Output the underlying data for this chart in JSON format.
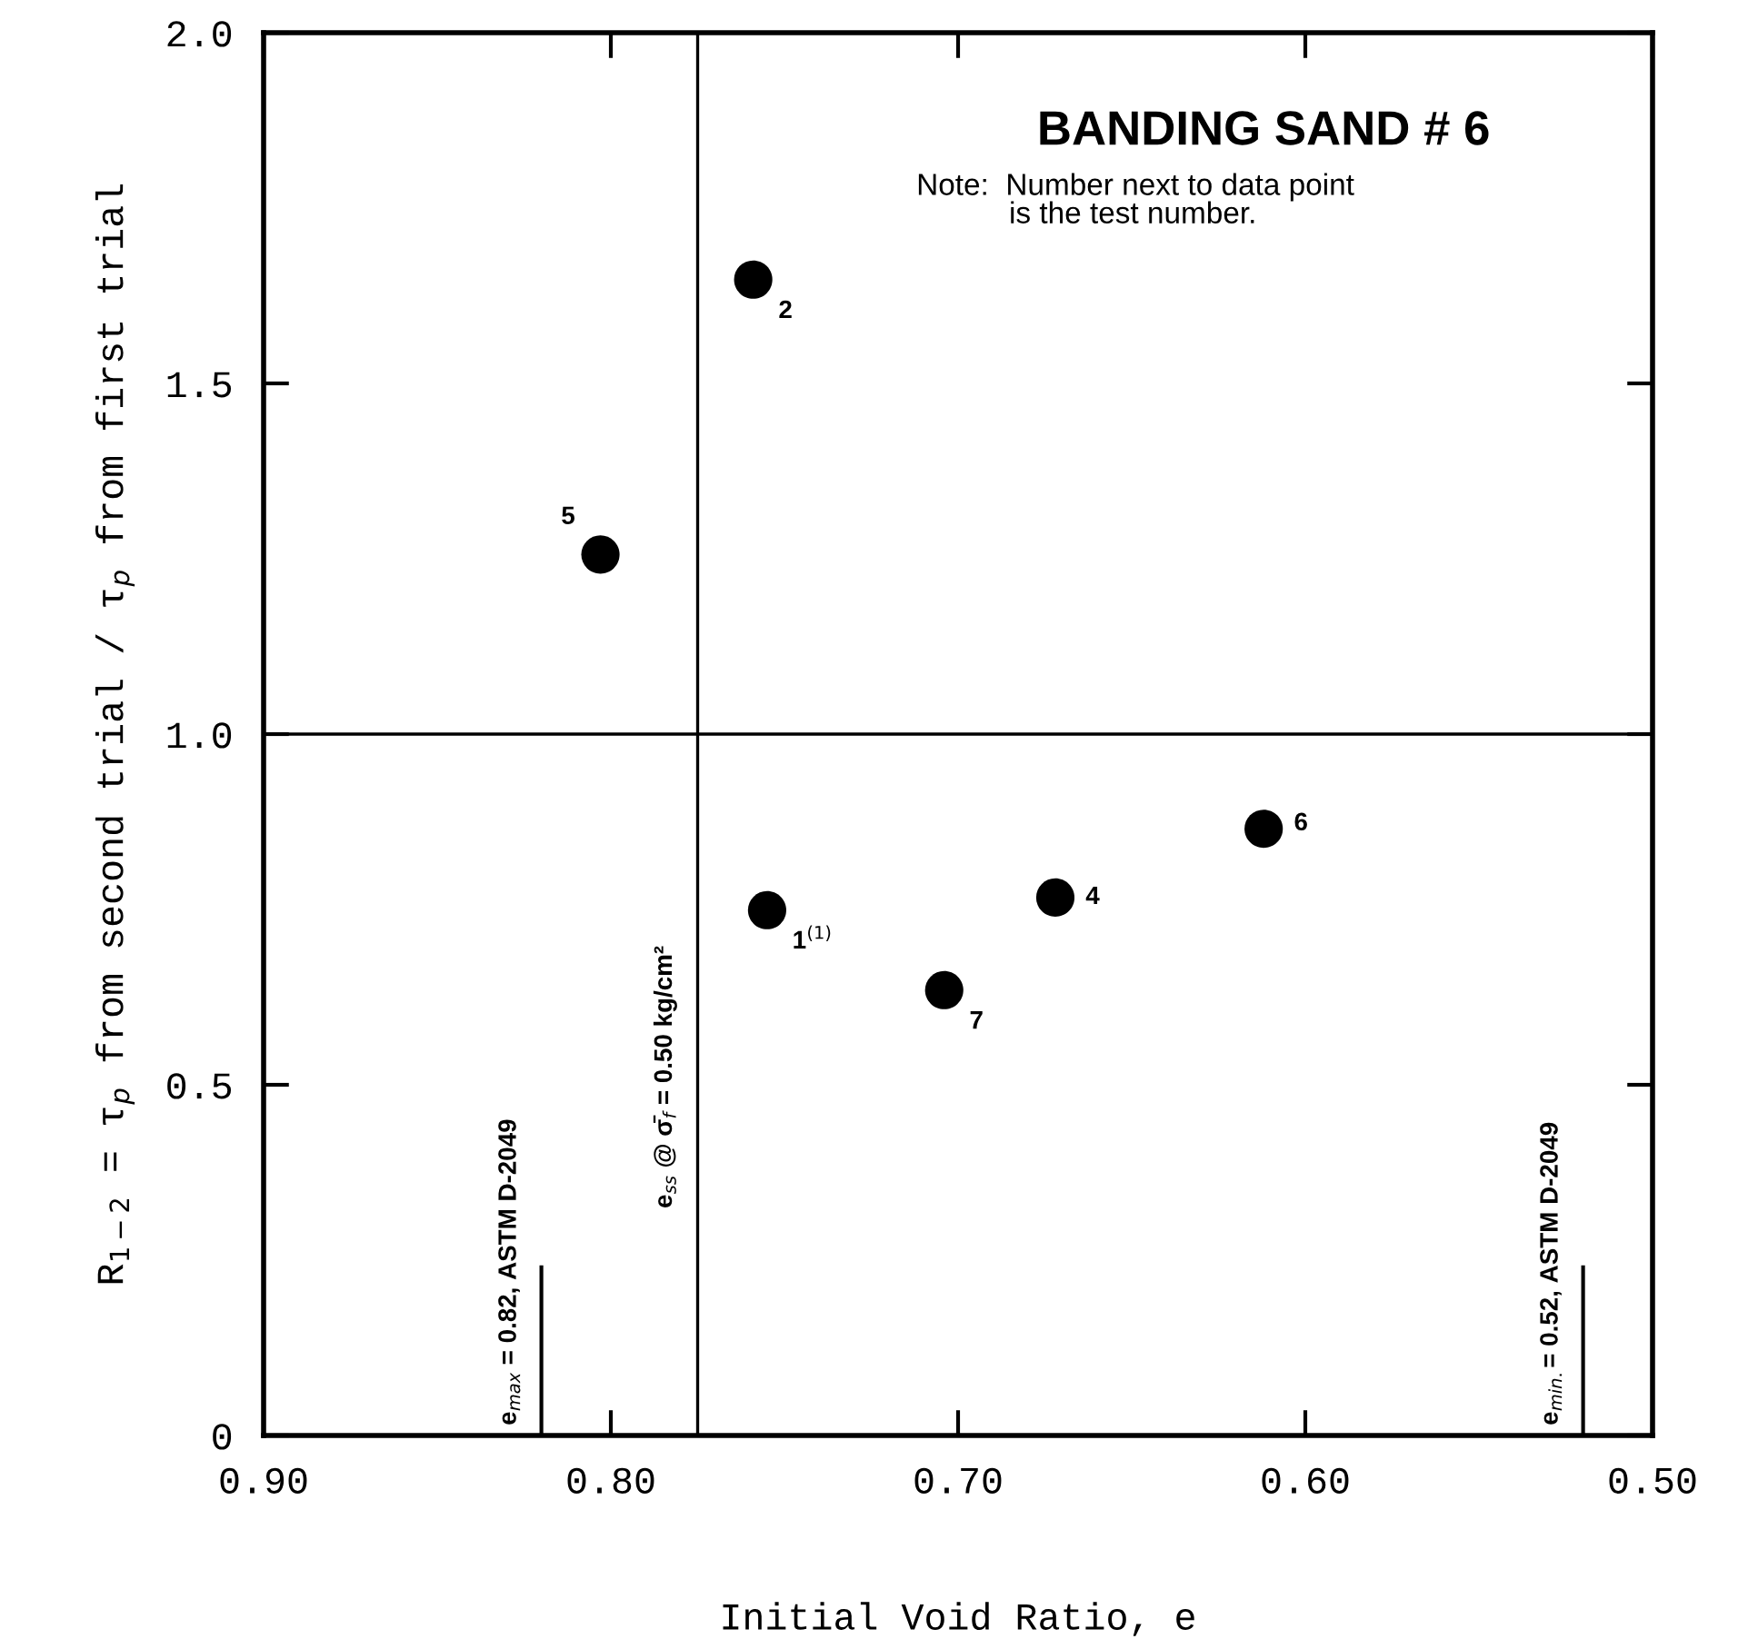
{
  "chart_data": {
    "type": "scatter",
    "title": "BANDING SAND # 6",
    "xlabel": "Initial Void Ratio, e",
    "ylabel": "R$_{1−2}$ = τ$_{p}$ from second trial / τ$_{p}$ from first trial",
    "x": [
      0.759,
      0.803,
      0.755,
      0.704,
      0.672,
      0.612
    ],
    "values": [
      1.648,
      1.256,
      0.749,
      0.635,
      0.767,
      0.865
    ],
    "color": "#000000",
    "marker": "circle",
    "xlim": [
      0.9,
      0.5
    ],
    "xticks": [
      {
        "value": 0.9,
        "label": "0.90"
      },
      {
        "value": 0.8,
        "label": "0.80"
      },
      {
        "value": 0.7,
        "label": "0.70"
      },
      {
        "value": 0.6,
        "label": "0.60"
      },
      {
        "value": 0.5,
        "label": "0.50"
      }
    ],
    "ylim": [
      0,
      2.0
    ],
    "yticks": [
      0,
      {
        "value": 0.5,
        "label": "0.5"
      },
      {
        "value": 1.0,
        "label": "1.0"
      },
      {
        "value": 1.5,
        "label": "1.5"
      },
      {
        "value": 2.0,
        "label": "2.0"
      }
    ],
    "ref_lines": [
      {
        "axis": "x",
        "value": 0.775
      },
      {
        "axis": "y",
        "value": 1.0
      },
      {
        "axis": "x",
        "value": 0.82,
        "label": "e$_{max}$ = 0.82, ASTM D-2049"
      },
      {
        "axis": "x",
        "value": 0.52,
        "label": "e$_{min.}$= 0.52, ASTM D-2049"
      }
    ],
    "annotations": [
      "Note:  Number next to data point\n           is the test number.",
      {
        "text": "e$_{ss}$ @ σ̄$_{f}$ = 0.50 kg/cm²",
        "x": 0.775
      },
      {
        "text": "2",
        "x": 0.759,
        "y": 1.648
      },
      {
        "text": "5",
        "x": 0.803,
        "y": 1.256
      },
      {
        "text": "1$^{(1)}$",
        "x": 0.755,
        "y": 0.749
      },
      {
        "text": "7",
        "x": 0.704,
        "y": 0.635
      },
      {
        "text": "4",
        "x": 0.672,
        "y": 0.767
      },
      {
        "text": "6",
        "x": 0.612,
        "y": 0.865
      }
    ],
    "grid": false,
    "legend": false
  }
}
